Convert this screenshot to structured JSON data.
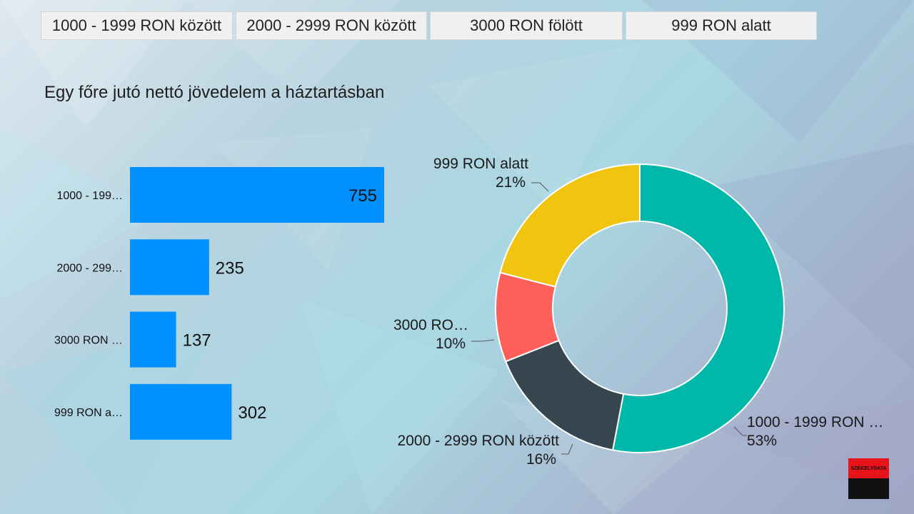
{
  "filters": [
    {
      "label": "1000 - 1999 RON között"
    },
    {
      "label": "2000 - 2999 RON között"
    },
    {
      "label": "3000 RON fölött"
    },
    {
      "label": "999 RON alatt"
    }
  ],
  "title": "Egy főre jutó nettó jövedelem a háztartásban",
  "logo_text": "SZÉKELYDATA",
  "chart_data": [
    {
      "type": "bar",
      "orientation": "horizontal",
      "categories": [
        "1000 - 199…",
        "2000 - 299…",
        "3000 RON …",
        "999 RON a…"
      ],
      "values": [
        755,
        235,
        137,
        302
      ],
      "color": "#0090ff",
      "xlim": [
        0,
        755
      ]
    },
    {
      "type": "pie",
      "variant": "donut",
      "slices": [
        {
          "label_line1": "1000 - 1999 RON …",
          "label_line2": "53%",
          "value": 53,
          "color": "#00b8a9"
        },
        {
          "label_line1": "2000 - 2999 RON között",
          "label_line2": "16%",
          "value": 16,
          "color": "#37474f"
        },
        {
          "label_line1": "3000 RO…",
          "label_line2": "10%",
          "value": 10,
          "color": "#ff5f5a"
        },
        {
          "label_line1": "999 RON alatt",
          "label_line2": "21%",
          "value": 21,
          "color": "#f1c40f"
        }
      ]
    }
  ]
}
